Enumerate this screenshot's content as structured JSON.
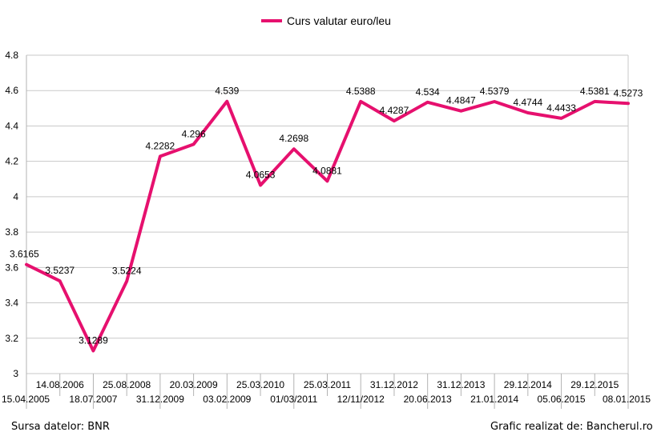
{
  "chart_data": {
    "type": "line",
    "series": [
      {
        "name": "Curs valutar euro/leu",
        "color": "#e6106e",
        "values": [
          3.6165,
          3.5237,
          3.1289,
          3.5224,
          4.2282,
          4.296,
          4.539,
          4.0653,
          4.2698,
          4.0881,
          4.5388,
          4.4287,
          4.534,
          4.4847,
          4.5379,
          4.4744,
          4.4433,
          4.5381,
          4.5273
        ]
      }
    ],
    "x_labels_row1": [
      "",
      "14.08.2006",
      "",
      "25.08.2008",
      "",
      "20.03.2009",
      "",
      "25.03.2010",
      "",
      "25.03.2011",
      "",
      "31.12.2012",
      "",
      "31.12.2013",
      "",
      "29.12.2014",
      "",
      "29.12.2015",
      ""
    ],
    "x_labels_row2": [
      "15.04.2005",
      "",
      "18.07.2007",
      "",
      "31.12.2009",
      "",
      "03.02.2009",
      "",
      "01/03/2011",
      "",
      "12/11/2012",
      "",
      "20.06.2013",
      "",
      "21.01.2014",
      "",
      "05.06.2015",
      "",
      "08.01.2015"
    ],
    "data_labels": [
      "3.6165",
      "3.5237",
      "3.1289",
      "3.5224",
      "4.2282",
      "4.296",
      "4.539",
      "4.0653",
      "4.2698",
      "4.0881",
      "4.5388",
      "4.4287",
      "4.534",
      "4.4847",
      "4.5379",
      "4.4744",
      "4.4433",
      "4.5381",
      "4.5273"
    ],
    "y_ticks": [
      "3",
      "3.2",
      "3.4",
      "3.6",
      "3.8",
      "4",
      "4.2",
      "4.4",
      "4.6",
      "4.8"
    ],
    "ylim": [
      3,
      4.8
    ],
    "grid": true,
    "legend_position": "top-center"
  },
  "footer": {
    "source": "Sursa datelor: BNR",
    "credit": "Grafic realizat de: Bancherul.ro"
  }
}
